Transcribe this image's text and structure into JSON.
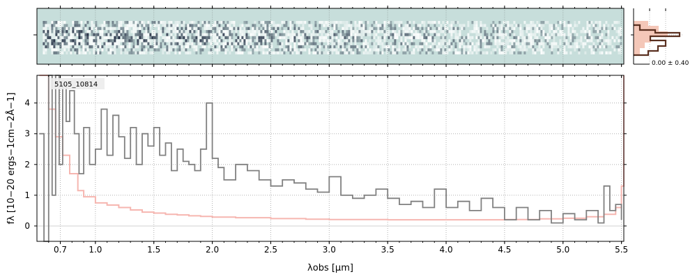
{
  "chart_data": [
    {
      "type": "heatmap",
      "name": "2D spectrum",
      "xlim": [
        0.5,
        5.52
      ],
      "rows": 11,
      "colors": [
        "#c7dedb",
        "#ffffff",
        "#182038"
      ],
      "grid": true
    },
    {
      "type": "line",
      "name": "1D spectrum",
      "label": "5105_10814",
      "xlabel": "λobs [μm]",
      "ylabel": "fλ [10−20 ergs−1cm−2Å−1]",
      "xlim": [
        0.5,
        5.52
      ],
      "ylim": [
        -0.5,
        4.9
      ],
      "x_ticks": [
        0.7,
        1.0,
        1.5,
        2.0,
        2.5,
        3.0,
        3.5,
        4.0,
        4.5,
        5.0,
        5.5
      ],
      "x_tick_labels": [
        "0.7",
        "1.0",
        "1.5",
        "2.0",
        "2.5",
        "3.0",
        "3.5",
        "4.0",
        "4.5",
        "5.0",
        "5.5"
      ],
      "y_ticks": [
        0,
        1,
        2,
        3,
        4
      ],
      "y_tick_labels": [
        "0",
        "1",
        "2",
        "3",
        "4"
      ],
      "grid": true,
      "series": [
        {
          "role": "flux",
          "color": "#808080",
          "points": [
            [
              0.52,
              3.0
            ],
            [
              0.56,
              -0.5
            ],
            [
              0.6,
              4.9
            ],
            [
              0.63,
              1.0
            ],
            [
              0.66,
              4.9
            ],
            [
              0.69,
              2.0
            ],
            [
              0.72,
              4.6
            ],
            [
              0.75,
              3.4
            ],
            [
              0.78,
              4.4
            ],
            [
              0.82,
              3.0
            ],
            [
              0.86,
              1.7
            ],
            [
              0.9,
              3.2
            ],
            [
              0.95,
              2.0
            ],
            [
              1.0,
              2.5
            ],
            [
              1.05,
              3.8
            ],
            [
              1.1,
              2.3
            ],
            [
              1.15,
              3.6
            ],
            [
              1.2,
              2.9
            ],
            [
              1.25,
              2.2
            ],
            [
              1.3,
              3.2
            ],
            [
              1.35,
              2.0
            ],
            [
              1.4,
              3.0
            ],
            [
              1.45,
              2.6
            ],
            [
              1.5,
              3.2
            ],
            [
              1.55,
              2.3
            ],
            [
              1.6,
              2.7
            ],
            [
              1.65,
              1.8
            ],
            [
              1.7,
              2.5
            ],
            [
              1.75,
              2.1
            ],
            [
              1.8,
              2.0
            ],
            [
              1.85,
              1.8
            ],
            [
              1.9,
              2.5
            ],
            [
              1.95,
              4.0
            ],
            [
              2.0,
              2.2
            ],
            [
              2.05,
              1.9
            ],
            [
              2.1,
              1.5
            ],
            [
              2.2,
              2.0
            ],
            [
              2.3,
              1.8
            ],
            [
              2.4,
              1.5
            ],
            [
              2.5,
              1.3
            ],
            [
              2.6,
              1.5
            ],
            [
              2.7,
              1.4
            ],
            [
              2.8,
              1.2
            ],
            [
              2.9,
              1.1
            ],
            [
              3.0,
              1.6
            ],
            [
              3.1,
              1.0
            ],
            [
              3.2,
              0.9
            ],
            [
              3.3,
              1.0
            ],
            [
              3.4,
              1.2
            ],
            [
              3.5,
              0.9
            ],
            [
              3.6,
              0.7
            ],
            [
              3.7,
              0.8
            ],
            [
              3.8,
              0.6
            ],
            [
              3.9,
              1.2
            ],
            [
              4.0,
              0.6
            ],
            [
              4.1,
              0.8
            ],
            [
              4.2,
              0.5
            ],
            [
              4.3,
              0.9
            ],
            [
              4.4,
              0.6
            ],
            [
              4.5,
              0.2
            ],
            [
              4.6,
              0.6
            ],
            [
              4.7,
              0.2
            ],
            [
              4.8,
              0.5
            ],
            [
              4.9,
              0.1
            ],
            [
              5.0,
              0.4
            ],
            [
              5.1,
              0.2
            ],
            [
              5.2,
              0.5
            ],
            [
              5.3,
              0.1
            ],
            [
              5.35,
              1.3
            ],
            [
              5.4,
              0.5
            ],
            [
              5.45,
              0.7
            ],
            [
              5.5,
              0.2
            ]
          ]
        },
        {
          "role": "error",
          "color": "#f6b6b0",
          "points": [
            [
              0.52,
              4.9
            ],
            [
              0.6,
              3.8
            ],
            [
              0.66,
              2.9
            ],
            [
              0.72,
              2.3
            ],
            [
              0.78,
              1.7
            ],
            [
              0.85,
              1.15
            ],
            [
              0.9,
              0.95
            ],
            [
              1.0,
              0.75
            ],
            [
              1.1,
              0.68
            ],
            [
              1.2,
              0.6
            ],
            [
              1.3,
              0.52
            ],
            [
              1.4,
              0.45
            ],
            [
              1.5,
              0.42
            ],
            [
              1.6,
              0.38
            ],
            [
              1.7,
              0.36
            ],
            [
              1.8,
              0.33
            ],
            [
              1.9,
              0.31
            ],
            [
              2.0,
              0.29
            ],
            [
              2.2,
              0.27
            ],
            [
              2.5,
              0.24
            ],
            [
              2.8,
              0.22
            ],
            [
              3.0,
              0.21
            ],
            [
              3.5,
              0.2
            ],
            [
              4.0,
              0.2
            ],
            [
              4.5,
              0.21
            ],
            [
              4.8,
              0.23
            ],
            [
              5.0,
              0.25
            ],
            [
              5.2,
              0.3
            ],
            [
              5.35,
              0.38
            ],
            [
              5.45,
              0.6
            ],
            [
              5.5,
              1.3
            ],
            [
              5.52,
              4.9
            ]
          ]
        }
      ]
    },
    {
      "type": "bar",
      "name": "profile histogram",
      "annotation": "0.00 ± 0.40",
      "colors": [
        "#f4c7b8",
        "#5a3020"
      ]
    }
  ]
}
